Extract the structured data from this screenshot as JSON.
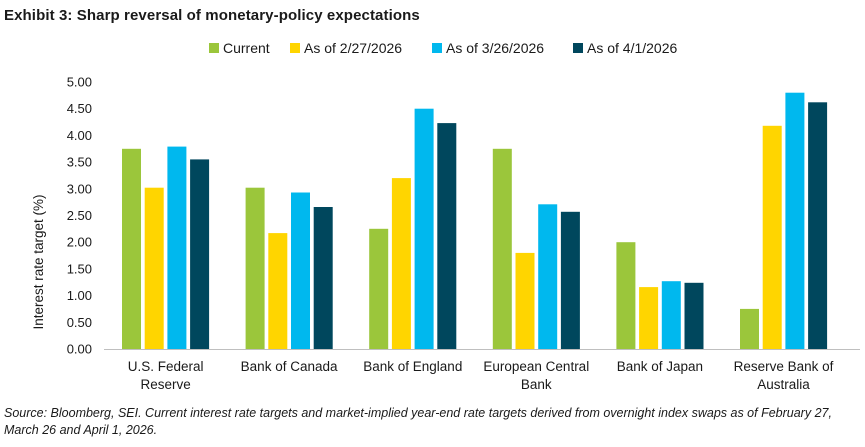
{
  "title": "Exhibit 3: Sharp reversal of monetary-policy expectations",
  "source_note": "Source: Bloomberg, SEI. Current interest rate targets and market-implied year-end rate targets derived from overnight index swaps as of February 27, March 26 and April 1, 2026.",
  "chart_data": {
    "type": "bar",
    "ylabel": "Interest rate target (%)",
    "xlabel": "",
    "ylim": [
      0,
      5
    ],
    "yticks": [
      "0.00",
      "0.50",
      "1.00",
      "1.50",
      "2.00",
      "2.50",
      "3.00",
      "3.50",
      "4.00",
      "4.50",
      "5.00"
    ],
    "grid": false,
    "legend_position": "top",
    "categories": [
      [
        "U.S. Federal",
        "Reserve"
      ],
      [
        "Bank of Canada"
      ],
      [
        "Bank of England"
      ],
      [
        "European Central",
        "Bank"
      ],
      [
        "Bank of Japan"
      ],
      [
        "Reserve Bank of",
        "Australia"
      ]
    ],
    "series": [
      {
        "name": "Current",
        "color": "#9BC63B",
        "values": [
          3.75,
          3.02,
          2.25,
          3.75,
          2.0,
          0.75
        ]
      },
      {
        "name": "As of 2/27/2026",
        "color": "#FFD500",
        "values": [
          3.02,
          2.17,
          3.2,
          1.8,
          1.16,
          4.18
        ]
      },
      {
        "name": "As of 3/26/2026",
        "color": "#00B8EE",
        "values": [
          3.79,
          2.93,
          4.5,
          2.71,
          1.27,
          4.8
        ]
      },
      {
        "name": "As of 4/1/2026",
        "color": "#00475D",
        "values": [
          3.55,
          2.66,
          4.23,
          2.57,
          1.24,
          4.62
        ]
      }
    ]
  }
}
